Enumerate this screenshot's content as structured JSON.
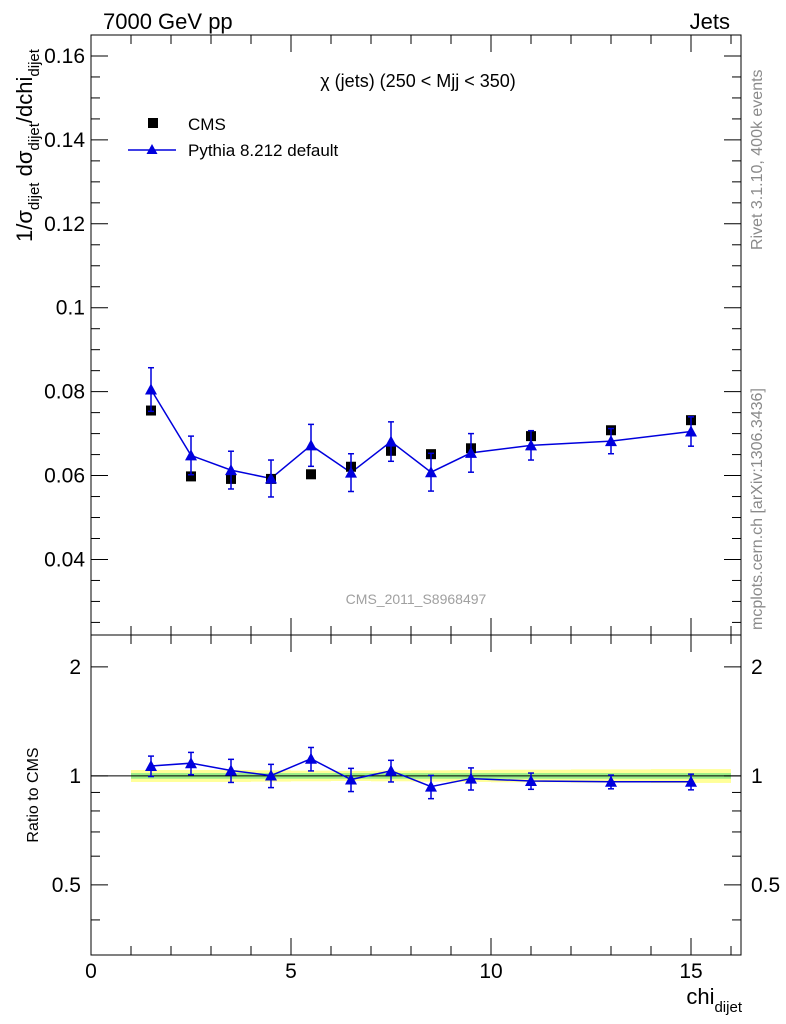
{
  "header": {
    "left": "7000 GeV pp",
    "right": "Jets"
  },
  "side": {
    "top": "Rivet 3.1.10,  400k events",
    "bottom": "mcplots.cern.ch [arXiv:1306.3436]"
  },
  "chart_data": [
    {
      "type": "scatter",
      "title": "χ (jets) (250 < Mjj <  350)",
      "watermark": "CMS_2011_S8968497",
      "ylabel": "1/σdijet dσdijet/dchidijet",
      "ylim": [
        0.022,
        0.165
      ],
      "xlim": [
        0,
        16.25
      ],
      "yticks": [
        "0.04",
        "0.06",
        "0.08",
        "0.1",
        "0.12",
        "0.14",
        "0.16"
      ],
      "ytick_values": [
        0.04,
        0.06,
        0.08,
        0.1,
        0.12,
        0.14,
        0.16
      ],
      "legend_position": "top-left",
      "series": [
        {
          "name": "CMS",
          "marker": "square",
          "color": "#000000",
          "x": [
            1.5,
            2.5,
            3.5,
            4.5,
            5.5,
            6.5,
            7.5,
            8.5,
            9.5,
            11,
            13,
            15
          ],
          "y": [
            0.0755,
            0.0598,
            0.0592,
            0.0592,
            0.0603,
            0.0621,
            0.0659,
            0.0651,
            0.0665,
            0.0694,
            0.0708,
            0.0732
          ]
        },
        {
          "name": "Pythia 8.212 default",
          "marker": "triangle",
          "color": "#0000dd",
          "x": [
            1.5,
            2.5,
            3.5,
            4.5,
            5.5,
            6.5,
            7.5,
            8.5,
            9.5,
            11,
            13,
            15
          ],
          "y": [
            0.0805,
            0.0648,
            0.0613,
            0.0593,
            0.0672,
            0.0607,
            0.0681,
            0.0608,
            0.0654,
            0.0672,
            0.0682,
            0.0705
          ],
          "yerr": [
            0.0052,
            0.0046,
            0.0045,
            0.0044,
            0.005,
            0.0045,
            0.0047,
            0.0045,
            0.0046,
            0.0035,
            0.003,
            0.0035
          ]
        }
      ]
    },
    {
      "type": "line",
      "ylabel": "Ratio to CMS",
      "xlabel": "chidijet",
      "xlim": [
        0,
        16.25
      ],
      "ylim": [
        0.32,
        2.45
      ],
      "yticks": [
        "0.5",
        "1",
        "2"
      ],
      "ytick_values": [
        0.5,
        1,
        2
      ],
      "xticks": [
        "0",
        "5",
        "10",
        "15"
      ],
      "xtick_values": [
        0,
        5,
        10,
        15
      ],
      "band_color_inner": "#99ee88",
      "band_color_outer": "#ffff99",
      "bands": {
        "edges": [
          1,
          2,
          3,
          4,
          5,
          6,
          7,
          8,
          9,
          10,
          12,
          14,
          16
        ],
        "inner": [
          0.018,
          0.018,
          0.018,
          0.018,
          0.018,
          0.018,
          0.018,
          0.018,
          0.018,
          0.018,
          0.018,
          0.018
        ],
        "outer": [
          0.038,
          0.038,
          0.038,
          0.036,
          0.034,
          0.032,
          0.034,
          0.036,
          0.038,
          0.04,
          0.042,
          0.044
        ]
      },
      "series": [
        {
          "name": "Pythia 8.212 default",
          "color": "#0000dd",
          "x": [
            1.5,
            2.5,
            3.5,
            4.5,
            5.5,
            6.5,
            7.5,
            8.5,
            9.5,
            11,
            13,
            15
          ],
          "y": [
            1.065,
            1.084,
            1.035,
            1.002,
            1.115,
            0.977,
            1.033,
            0.934,
            0.983,
            0.968,
            0.963,
            0.963
          ],
          "yerr": [
            0.069,
            0.077,
            0.076,
            0.074,
            0.083,
            0.072,
            0.071,
            0.069,
            0.069,
            0.05,
            0.042,
            0.048
          ]
        }
      ]
    }
  ]
}
